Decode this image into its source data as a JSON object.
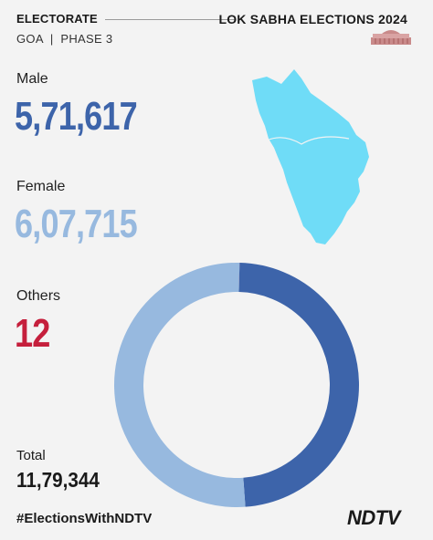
{
  "header": {
    "section": "ELECTORATE",
    "title": "LOK SABHA ELECTIONS 2024",
    "subtitle": "GOA  |  PHASE 3"
  },
  "stats": {
    "male": {
      "label": "Male",
      "value": "5,71,617"
    },
    "female": {
      "label": "Female",
      "value": "6,07,715"
    },
    "others": {
      "label": "Others",
      "value": "12"
    },
    "total": {
      "label": "Total",
      "value": "11,79,344"
    }
  },
  "footer": {
    "hashtag": "#ElectionsWithNDTV",
    "brand": "NDTV"
  },
  "colors": {
    "male": "#3d64aa",
    "female": "#97b9df",
    "others": "#c51f3c",
    "map": "#6fdcf7"
  },
  "icons": {
    "parliament": "parliament-building-icon",
    "map": "goa-state-map"
  },
  "donut_values": {
    "male": 571617,
    "female": 607715,
    "others": 12
  }
}
